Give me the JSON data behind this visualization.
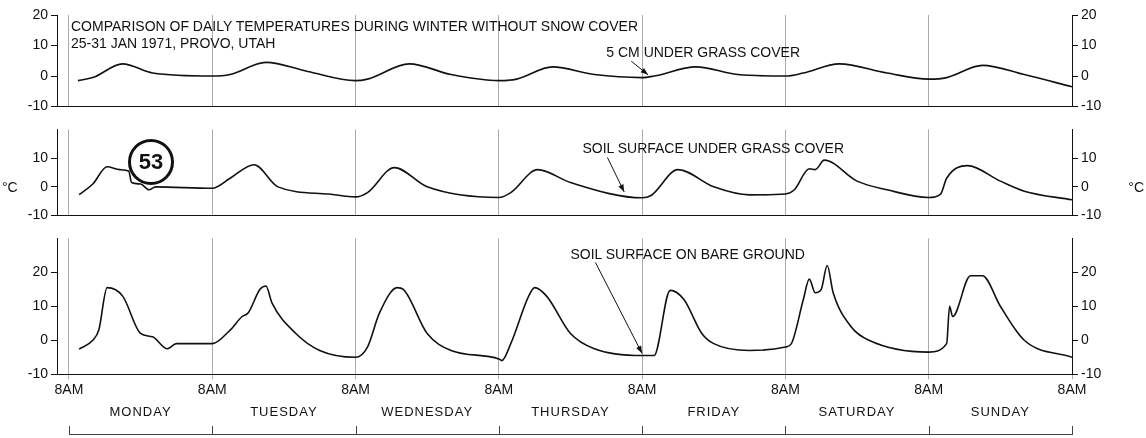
{
  "chart_data": [
    {
      "type": "line",
      "title": "COMPARISON OF DAILY TEMPERATURES DURING WINTER WITHOUT SNOW COVER",
      "subtitle": "25-31 JAN 1971, PROVO, UTAH",
      "xlim": [
        "1971-01-25T06:00",
        "1971-02-01T08:00"
      ],
      "xticks": [
        {
          "value": "1971-01-25T08:00",
          "label": null
        },
        {
          "value": "1971-01-26T08:00",
          "label": null
        },
        {
          "value": "1971-01-27T08:00",
          "label": null
        },
        {
          "value": "1971-01-28T08:00",
          "label": null
        },
        {
          "value": "1971-01-29T08:00",
          "label": null
        },
        {
          "value": "1971-01-30T08:00",
          "label": null
        },
        {
          "value": "1971-01-31T08:00",
          "label": null
        },
        {
          "value": "1971-02-01T08:00",
          "label": null
        }
      ],
      "ylim": [
        -10,
        20
      ],
      "yticks": [
        -10,
        0,
        10,
        20
      ],
      "y2lim": [
        -10,
        20
      ],
      "y2ticks": [
        -10,
        0,
        10,
        20
      ],
      "grid": "x",
      "legend": false,
      "tick_labels": "y",
      "marker": "none",
      "line_style": "solid",
      "series": [
        {
          "name": "5 CM UNDER GRASS COVER",
          "color": "#111111",
          "x": [
            "1971-01-25T09:30",
            "1971-01-25T12:00",
            "1971-01-25T17:00",
            "1971-01-25T22:00",
            "1971-01-26T08:00",
            "1971-01-26T11:00",
            "1971-01-26T17:00",
            "1971-01-27T00:00",
            "1971-01-27T08:00",
            "1971-01-27T10:00",
            "1971-01-27T17:00",
            "1971-01-28T00:00",
            "1971-01-28T08:00",
            "1971-01-28T11:00",
            "1971-01-28T17:00",
            "1971-01-29T00:00",
            "1971-01-29T08:00",
            "1971-01-29T10:00",
            "1971-01-29T17:00",
            "1971-01-30T00:00",
            "1971-01-30T08:00",
            "1971-01-30T11:00",
            "1971-01-30T17:00",
            "1971-01-31T01:00",
            "1971-01-31T08:00",
            "1971-01-31T11:00",
            "1971-01-31T17:00",
            "1971-02-01T00:00",
            "1971-02-01T08:00"
          ],
          "values": [
            -1.5,
            -0.5,
            4,
            1,
            0,
            0.5,
            4.5,
            1.5,
            -1.5,
            -1,
            4,
            0.5,
            -1.5,
            -1,
            3,
            0.5,
            -0.5,
            0,
            3,
            0.5,
            0,
            1,
            4,
            1,
            -1,
            -0.5,
            3.5,
            0.5,
            -3.5
          ]
        }
      ]
    },
    {
      "type": "line",
      "ylabel": "°C",
      "y2label": "°C",
      "xlim": [
        "1971-01-25T06:00",
        "1971-02-01T08:00"
      ],
      "xticks": [
        {
          "value": "1971-01-25T08:00",
          "label": null
        },
        {
          "value": "1971-01-26T08:00",
          "label": null
        },
        {
          "value": "1971-01-27T08:00",
          "label": null
        },
        {
          "value": "1971-01-28T08:00",
          "label": null
        },
        {
          "value": "1971-01-29T08:00",
          "label": null
        },
        {
          "value": "1971-01-30T08:00",
          "label": null
        },
        {
          "value": "1971-01-31T08:00",
          "label": null
        },
        {
          "value": "1971-02-01T08:00",
          "label": null
        }
      ],
      "ylim": [
        -10,
        20
      ],
      "yticks": [
        -10,
        0,
        10
      ],
      "y2lim": [
        -10,
        20
      ],
      "y2ticks": [
        -10,
        0,
        10
      ],
      "grid": "x",
      "legend": false,
      "tick_labels": "y",
      "marker": "none",
      "line_style": "solid",
      "annotations": [
        "53"
      ],
      "series": [
        {
          "name": "SOIL SURFACE UNDER GRASS COVER",
          "color": "#111111",
          "x": [
            "1971-01-25T09:42",
            "1971-01-25T12:00",
            "1971-01-25T14:24",
            "1971-01-25T16:30",
            "1971-01-25T18:00",
            "1971-01-25T18:30",
            "1971-01-25T20:00",
            "1971-01-25T21:24",
            "1971-01-25T22:30",
            "1971-01-26T08:00",
            "1971-01-26T11:00",
            "1971-01-26T15:00",
            "1971-01-26T19:00",
            "1971-01-27T03:30",
            "1971-01-27T08:00",
            "1971-01-27T10:00",
            "1971-01-27T14:30",
            "1971-01-27T20:00",
            "1971-01-28T08:00",
            "1971-01-28T10:00",
            "1971-01-28T14:30",
            "1971-01-28T20:00",
            "1971-01-29T08:00",
            "1971-01-29T09:30",
            "1971-01-29T14:00",
            "1971-01-29T20:00",
            "1971-01-30T02:00",
            "1971-01-30T08:00",
            "1971-01-30T09:30",
            "1971-01-30T12:00",
            "1971-01-30T13:00",
            "1971-01-30T14:30",
            "1971-01-30T20:00",
            "1971-01-31T01:00",
            "1971-01-31T08:00",
            "1971-01-31T10:00",
            "1971-01-31T11:00",
            "1971-01-31T14:30",
            "1971-01-31T20:00",
            "1971-02-01T00:00",
            "1971-02-01T08:00"
          ],
          "values": [
            -2.7,
            1,
            7,
            6,
            5.5,
            1.5,
            1,
            -1,
            0,
            -0.5,
            3,
            7.7,
            0,
            -2.5,
            -3.5,
            -2,
            6.7,
            0,
            -3.7,
            -2,
            6,
            1.5,
            -3.8,
            -3,
            6,
            0,
            -2.8,
            -2.5,
            -1,
            6.3,
            6,
            9.3,
            2,
            -1,
            -3.7,
            -2.5,
            3,
            7.4,
            2,
            -1.5,
            -4.5
          ]
        }
      ]
    },
    {
      "type": "line",
      "xlim": [
        "1971-01-25T06:00",
        "1971-02-01T08:00"
      ],
      "xticks": [
        {
          "value": "1971-01-25T08:00",
          "label": "8AM"
        },
        {
          "value": "1971-01-26T08:00",
          "label": "8AM"
        },
        {
          "value": "1971-01-27T08:00",
          "label": "8AM"
        },
        {
          "value": "1971-01-28T08:00",
          "label": "8AM"
        },
        {
          "value": "1971-01-29T08:00",
          "label": "8AM"
        },
        {
          "value": "1971-01-30T08:00",
          "label": "8AM"
        },
        {
          "value": "1971-01-31T08:00",
          "label": "8AM"
        },
        {
          "value": "1971-02-01T08:00",
          "label": "8AM"
        }
      ],
      "ylim": [
        -10,
        30
      ],
      "yticks": [
        -10,
        0,
        10,
        20
      ],
      "y2lim": [
        -10,
        30
      ],
      "y2ticks": [
        -10,
        0,
        10,
        20
      ],
      "grid": "x",
      "legend": false,
      "marker": "none",
      "line_style": "solid",
      "annotations": [
        "MONDAY",
        "TUESDAY",
        "WEDNESDAY",
        "THURSDAY",
        "FRIDAY",
        "SATURDAY",
        "SUNDAY"
      ],
      "series": [
        {
          "name": "SOIL SURFACE ON BARE GROUND",
          "color": "#111111",
          "x": [
            "1971-01-25T09:42",
            "1971-01-25T12:00",
            "1971-01-25T13:00",
            "1971-01-25T14:24",
            "1971-01-25T17:00",
            "1971-01-25T20:00",
            "1971-01-25T22:00",
            "1971-01-26T00:30",
            "1971-01-26T02:00",
            "1971-01-26T08:00",
            "1971-01-26T11:00",
            "1971-01-26T13:00",
            "1971-01-26T14:00",
            "1971-01-26T16:00",
            "1971-01-26T17:00",
            "1971-01-26T18:00",
            "1971-01-26T22:00",
            "1971-01-27T02:00",
            "1971-01-27T08:00",
            "1971-01-27T10:00",
            "1971-01-27T12:00",
            "1971-01-27T15:00",
            "1971-01-27T16:00",
            "1971-01-27T20:00",
            "1971-01-28T00:00",
            "1971-01-28T08:00",
            "1971-01-28T08:30",
            "1971-01-28T10:00",
            "1971-01-28T13:00",
            "1971-01-28T14:00",
            "1971-01-28T16:00",
            "1971-01-28T20:00",
            "1971-01-29T00:00",
            "1971-01-29T08:00",
            "1971-01-29T10:00",
            "1971-01-29T12:42",
            "1971-01-29T15:00",
            "1971-01-29T18:00",
            "1971-01-29T20:00",
            "1971-01-30T02:00",
            "1971-01-30T08:00",
            "1971-01-30T09:00",
            "1971-01-30T11:00",
            "1971-01-30T12:00",
            "1971-01-30T13:00",
            "1971-01-30T14:00",
            "1971-01-30T15:00",
            "1971-01-30T16:00",
            "1971-01-30T19:00",
            "1971-01-30T22:00",
            "1971-01-31T08:00",
            "1971-01-31T11:00",
            "1971-01-31T11:30",
            "1971-01-31T12:00",
            "1971-01-31T15:00",
            "1971-01-31T17:00",
            "1971-01-31T20:00",
            "1971-02-01T00:00",
            "1971-02-01T08:00"
          ],
          "values": [
            -2.6,
            0,
            3,
            15.5,
            13,
            2,
            1,
            -2.5,
            -1,
            -1,
            3,
            7,
            8,
            15,
            16,
            11,
            2,
            -3,
            -5,
            -2,
            8,
            15.5,
            15,
            2,
            -3,
            -5.5,
            -6,
            -1,
            13,
            15.5,
            13,
            2,
            -2.5,
            -4.5,
            -4.5,
            14.7,
            12,
            2,
            -1,
            -3,
            -2,
            -1,
            12,
            18,
            14,
            15,
            22,
            14,
            4,
            0,
            -3.5,
            -1,
            10,
            7,
            19,
            19,
            10,
            0,
            -5
          ]
        }
      ]
    }
  ]
}
